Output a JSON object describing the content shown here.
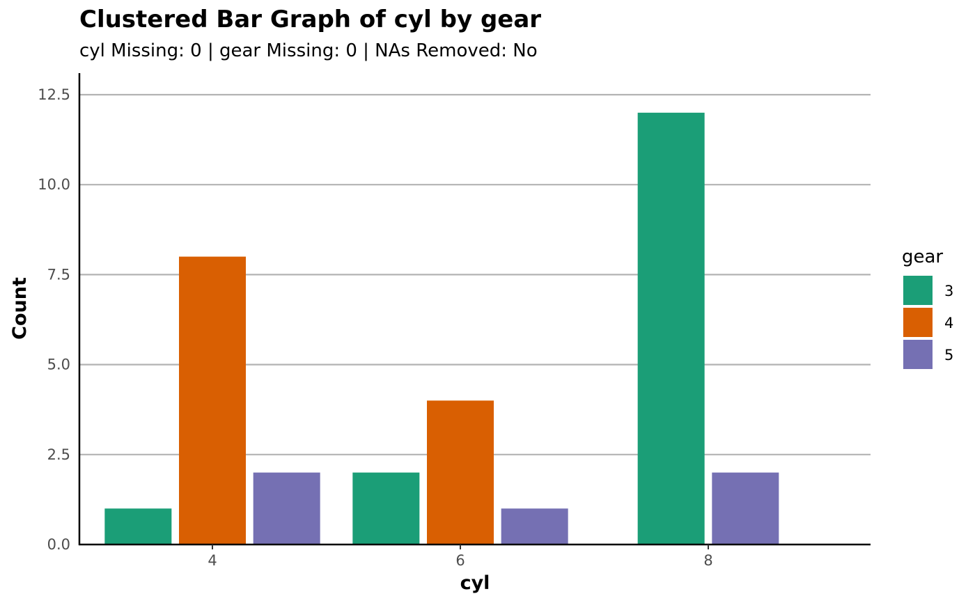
{
  "chart_data": {
    "type": "bar",
    "title": "Clustered Bar Graph of cyl by gear",
    "subtitle": "cyl Missing: 0 | gear Missing: 0 | NAs Removed: No",
    "xlabel": "cyl",
    "ylabel": "Count",
    "categories": [
      "4",
      "6",
      "8"
    ],
    "ylim": [
      0,
      13.1
    ],
    "yticks": [
      "0.0",
      "2.5",
      "5.0",
      "7.5",
      "10.0",
      "12.5"
    ],
    "grid": "horizontal",
    "legend": {
      "title": "gear",
      "position": "right"
    },
    "series": [
      {
        "name": "3",
        "color": "#1B9E77",
        "values": [
          1,
          2,
          12
        ]
      },
      {
        "name": "4",
        "color": "#D95F02",
        "values": [
          8,
          4,
          0
        ]
      },
      {
        "name": "5",
        "color": "#7570B3",
        "values": [
          2,
          1,
          2
        ]
      }
    ]
  }
}
